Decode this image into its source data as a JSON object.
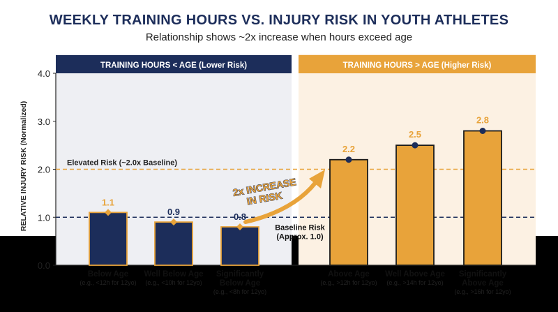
{
  "chart_data": {
    "type": "bar",
    "title": "WEEKLY TRAINING HOURS VS. INJURY RISK IN YOUTH ATHLETES",
    "subtitle": "Relationship shows ~2x increase when hours exceed age",
    "ylabel": "RELATIVE INJURY RISK (Normalized)",
    "ylim": [
      0,
      4
    ],
    "yticks": [
      "0.0",
      "1.0",
      "2.0",
      "3.0",
      "4.0"
    ],
    "grid": false,
    "groups": [
      {
        "label": "TRAINING HOURS < AGE (Lower Risk)",
        "color": "#1c2d5a"
      },
      {
        "label": "TRAINING HOURS > AGE (Higher Risk)",
        "color": "#e8a33a"
      }
    ],
    "categories": [
      {
        "name": "Below Age",
        "sub": "(e.g., <12h for 12yo)",
        "value": 1.1,
        "label": "1.1",
        "group": 0
      },
      {
        "name": "Well Below Age",
        "sub": "(e.g., <10h for 12yo)",
        "value": 0.9,
        "label": "0.9",
        "group": 0
      },
      {
        "name": "Significantly Below Age",
        "sub": "(e.g., <8h for 12yo)",
        "value": 0.8,
        "label": "0.8",
        "group": 0
      },
      {
        "name": "Above Age",
        "sub": "(e.g., >12h for 12yo)",
        "value": 2.2,
        "label": "2.2",
        "group": 1
      },
      {
        "name": "Well Above Age",
        "sub": "(e.g., >14h for 12yo)",
        "value": 2.5,
        "label": "2.5",
        "group": 1
      },
      {
        "name": "Significantly Above Age",
        "sub": "(e.g., >16h for 12yo)",
        "value": 2.8,
        "label": "2.8",
        "group": 1
      }
    ],
    "reference_lines": [
      {
        "value": 1.0,
        "label": "Baseline Risk",
        "sublabel": "(Approx. 1.0)",
        "color": "#1c2d5a"
      },
      {
        "value": 2.0,
        "label": "Elevated Risk (~2.0x Baseline)",
        "color": "#e8a33a"
      }
    ],
    "annotation": {
      "text_line1": "2x INCREASE",
      "text_line2": "IN RISK"
    },
    "colors": {
      "navy": "#1c2d5a",
      "gold": "#e8a33a",
      "lower_bg": "#eeeff3",
      "higher_bg": "#fcf1e3"
    }
  }
}
